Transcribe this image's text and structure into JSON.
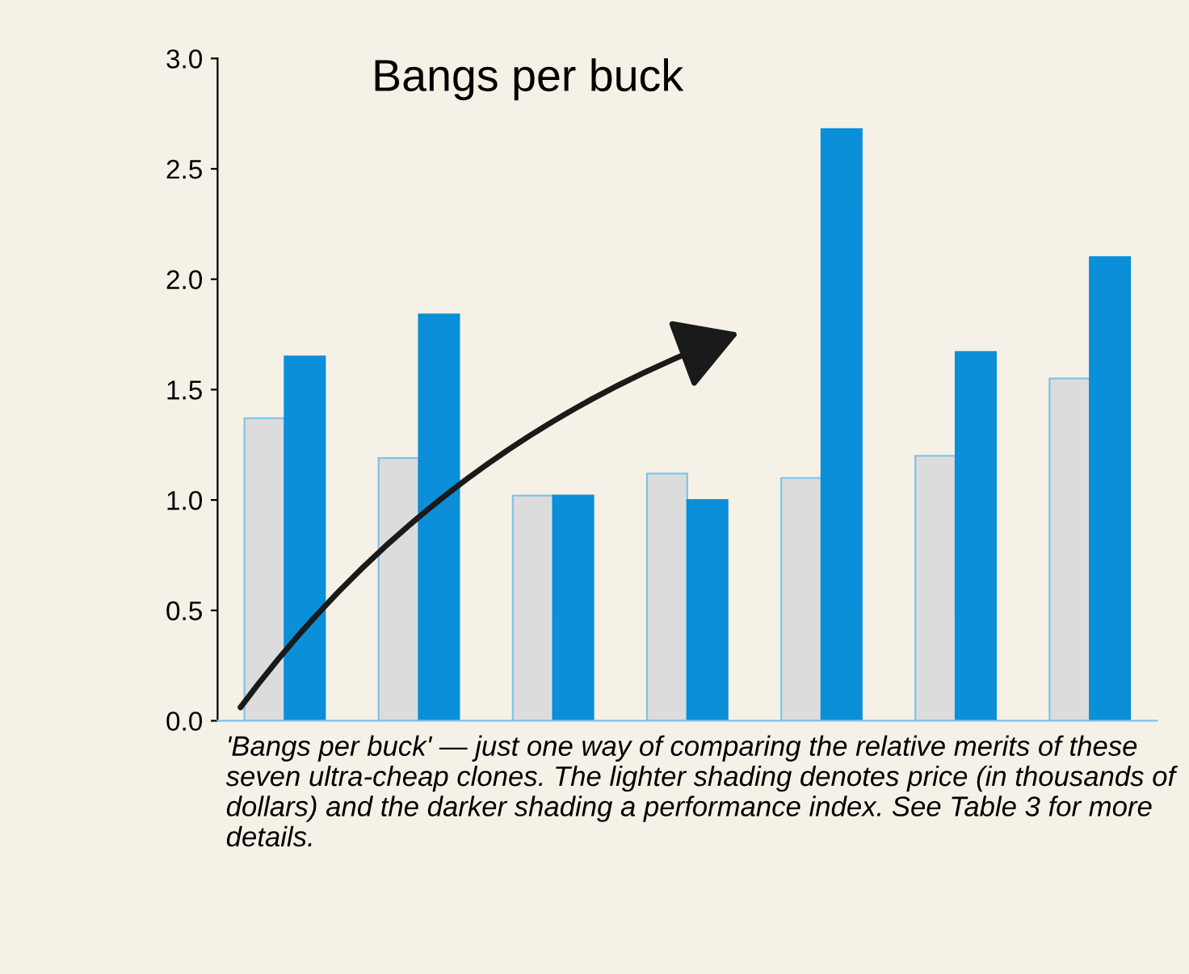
{
  "chart_data": {
    "type": "bar",
    "title": "Bangs per buck",
    "categories": [
      null,
      null,
      null,
      null,
      null,
      null,
      null
    ],
    "series": [
      {
        "color": "#dcdcdc",
        "values": [
          1.37,
          1.19,
          1.02,
          1.12,
          1.1,
          1.2,
          1.55
        ]
      },
      {
        "color": "#0a8fd8",
        "values": [
          1.65,
          1.84,
          1.02,
          1.0,
          2.68,
          1.67,
          2.1
        ]
      }
    ],
    "ylim": [
      0,
      3.0
    ],
    "yticks": [
      {
        "value": 0,
        "label": "0.0"
      },
      0.5,
      {
        "value": 1,
        "label": "1.0"
      },
      1.5,
      {
        "value": 2,
        "label": "2.0"
      },
      2.5,
      {
        "value": 3,
        "label": "3.0"
      }
    ],
    "grid": false,
    "legend": false,
    "annotations": [
      "'Bangs per buck' — just one way of comparing the relative merits of these seven ultra-cheap clones. The lighter shading denotes price (in thousands of dollars) and the darker shading a performance index. See Table 3 for more details."
    ]
  }
}
